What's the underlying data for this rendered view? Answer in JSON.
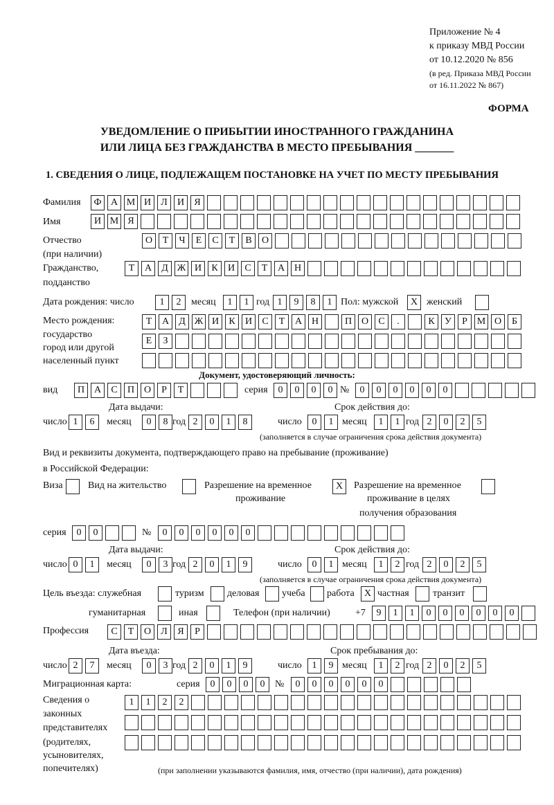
{
  "header": {
    "appendix": "Приложение № 4",
    "order_line1": "к приказу МВД России",
    "order_line2": "от 10.12.2020 № 856",
    "edition_line1": "(в ред. Приказа МВД России",
    "edition_line2": "от 16.11.2022 № 867)",
    "form_label": "ФОРМА",
    "title_line1": "УВЕДОМЛЕНИЕ О ПРИБЫТИИ ИНОСТРАННОГО ГРАЖДАНИНА",
    "title_line2": "ИЛИ ЛИЦА БЕЗ ГРАЖДАНСТВА В МЕСТО ПРЕБЫВАНИЯ _______"
  },
  "section1": {
    "heading": "1. СВЕДЕНИЯ О ЛИЦЕ, ПОДЛЕЖАЩЕМ ПОСТАНОВКЕ НА УЧЕТ ПО МЕСТУ ПРЕБЫВАНИЯ",
    "surname": {
      "label": "Фамилия",
      "boxes": [
        "Ф",
        "А",
        "М",
        "И",
        "Л",
        "И",
        "Я",
        "",
        "",
        "",
        "",
        "",
        "",
        "",
        "",
        "",
        "",
        "",
        "",
        "",
        "",
        "",
        "",
        "",
        "",
        ""
      ]
    },
    "name": {
      "label": "Имя",
      "boxes": [
        "И",
        "М",
        "Я",
        "",
        "",
        "",
        "",
        "",
        "",
        "",
        "",
        "",
        "",
        "",
        "",
        "",
        "",
        "",
        "",
        "",
        "",
        "",
        "",
        "",
        "",
        ""
      ]
    },
    "patronymic": {
      "label": "Отчество",
      "label2": "(при наличии)",
      "boxes": [
        "О",
        "Т",
        "Ч",
        "Е",
        "С",
        "Т",
        "В",
        "О",
        "",
        "",
        "",
        "",
        "",
        "",
        "",
        "",
        "",
        "",
        "",
        "",
        "",
        "",
        ""
      ]
    },
    "citizenship": {
      "label": "Гражданство,",
      "label2": "подданство",
      "boxes": [
        "Т",
        "А",
        "Д",
        "Ж",
        "И",
        "К",
        "И",
        "С",
        "Т",
        "А",
        "Н",
        "",
        "",
        "",
        "",
        "",
        "",
        "",
        "",
        "",
        "",
        "",
        "",
        ""
      ]
    },
    "birth_date": {
      "label": "Дата рождения:   число",
      "month_label": "месяц",
      "year_label": "год",
      "day": [
        "1",
        "2"
      ],
      "month": [
        "1",
        "1"
      ],
      "year": [
        "1",
        "9",
        "8",
        "1"
      ]
    },
    "sex": {
      "label": "Пол: мужской",
      "male": "X",
      "female_label": "женский",
      "female": ""
    },
    "birth_place": {
      "label1": "Место рождения:",
      "label2": "государство",
      "label3": "город или другой",
      "label4": "населенный пункт",
      "row1": [
        "Т",
        "А",
        "Д",
        "Ж",
        "И",
        "К",
        "И",
        "С",
        "Т",
        "А",
        "Н",
        "",
        "П",
        "О",
        "С",
        ".",
        "",
        "К",
        "У",
        "Р",
        "М",
        "О",
        "Б"
      ],
      "row2": [
        "Е",
        "З",
        "",
        "",
        "",
        "",
        "",
        "",
        "",
        "",
        "",
        "",
        "",
        "",
        "",
        "",
        "",
        "",
        "",
        "",
        "",
        "",
        ""
      ],
      "row3": [
        "",
        "",
        "",
        "",
        "",
        "",
        "",
        "",
        "",
        "",
        "",
        "",
        "",
        "",
        "",
        "",
        "",
        "",
        "",
        "",
        "",
        "",
        ""
      ]
    },
    "id_doc": {
      "heading": "Документ, удостоверяющий личность:",
      "kind_label": "вид",
      "kind": [
        "П",
        "А",
        "С",
        "П",
        "О",
        "Р",
        "Т",
        "",
        "",
        ""
      ],
      "series_label": "серия",
      "series": [
        "0",
        "0",
        "0",
        "0"
      ],
      "number_label": "№",
      "number": [
        "0",
        "0",
        "0",
        "0",
        "0",
        "0",
        "",
        "",
        "",
        "",
        ""
      ],
      "issue_label": "Дата выдачи:",
      "valid_label": "Срок действия до:",
      "day_label": "число",
      "month_label": "месяц",
      "year_label": "год",
      "issue_day": [
        "1",
        "6"
      ],
      "issue_month": [
        "0",
        "8"
      ],
      "issue_year": [
        "2",
        "0",
        "1",
        "8"
      ],
      "valid_day": [
        "0",
        "1"
      ],
      "valid_month": [
        "1",
        "1"
      ],
      "valid_year": [
        "2",
        "0",
        "2",
        "5"
      ],
      "note": "(заполняется в случае ограничения срока действия документа)"
    },
    "stay_doc": {
      "label1": "Вид и реквизиты документа, подтверждающего право на пребывание (проживание)",
      "label2": "в Российской Федерации:",
      "visa_label": "Виза",
      "visa": "",
      "residence_label": "Вид на жительство",
      "residence": "",
      "trp_label1": "Разрешение на временное",
      "trp_label2": "проживание",
      "trp": "X",
      "trp_edu_label1": "Разрешение на временное",
      "trp_edu_label2": "проживание в целях",
      "trp_edu_label3": "получения образования",
      "trp_edu": "",
      "series_label": "серия",
      "series": [
        "0",
        "0",
        "",
        ""
      ],
      "number_label": "№",
      "number": [
        "0",
        "0",
        "0",
        "0",
        "0",
        "0",
        "",
        "",
        "",
        "",
        "",
        "",
        "",
        "",
        ""
      ],
      "issue_label": "Дата выдачи:",
      "valid_label": "Срок действия до:",
      "day_label": "число",
      "month_label": "месяц",
      "year_label": "год",
      "issue_day": [
        "0",
        "1"
      ],
      "issue_month": [
        "0",
        "3"
      ],
      "issue_year": [
        "2",
        "0",
        "1",
        "9"
      ],
      "valid_day": [
        "0",
        "1"
      ],
      "valid_month": [
        "1",
        "2"
      ],
      "valid_year": [
        "2",
        "0",
        "2",
        "5"
      ],
      "note": "(заполняется в случае ограничения срока действия документа)"
    },
    "purpose": {
      "label": "Цель въезда: служебная",
      "official": "",
      "tourism_label": "туризм",
      "tourism": "",
      "business_label": "деловая",
      "business": "",
      "study_label": "учеба",
      "study": "",
      "work_label": "работа",
      "work": "X",
      "private_label": "частная",
      "private": "",
      "transit_label": "транзит",
      "transit": "",
      "humanitarian_label": "гуманитарная",
      "humanitarian": "",
      "other_label": "иная",
      "other": ""
    },
    "phone": {
      "label": "Телефон (при наличии)",
      "prefix": "+7",
      "boxes": [
        "9",
        "1",
        "1",
        "0",
        "0",
        "0",
        "0",
        "0",
        "0",
        ""
      ]
    },
    "profession": {
      "label": "Профессия",
      "boxes": [
        "С",
        "Т",
        "О",
        "Л",
        "Я",
        "Р",
        "",
        "",
        "",
        "",
        "",
        "",
        "",
        "",
        "",
        "",
        "",
        "",
        "",
        "",
        "",
        "",
        "",
        "",
        "",
        ""
      ]
    },
    "entry": {
      "entry_label": "Дата въезда:",
      "stay_label": "Срок пребывания до:",
      "day_label": "число",
      "month_label": "месяц",
      "year_label": "год",
      "entry_day": [
        "2",
        "7"
      ],
      "entry_month": [
        "0",
        "3"
      ],
      "entry_year": [
        "2",
        "0",
        "1",
        "9"
      ],
      "stay_day": [
        "1",
        "9"
      ],
      "stay_month": [
        "1",
        "2"
      ],
      "stay_year": [
        "2",
        "0",
        "2",
        "5"
      ]
    },
    "migration_card": {
      "label": "Миграционная карта:",
      "series_label": "серия",
      "series": [
        "0",
        "0",
        "0",
        "0"
      ],
      "number_label": "№",
      "number": [
        "0",
        "0",
        "0",
        "0",
        "0",
        "0",
        "",
        "",
        "",
        "",
        ""
      ]
    },
    "representatives": {
      "label1": "Сведения о",
      "label2": "законных",
      "label3": "представителях",
      "label4": "(родителях,",
      "label5": "усыновителях,",
      "label6": "попечителях)",
      "row1": [
        "1",
        "1",
        "2",
        "2",
        "",
        "",
        "",
        "",
        "",
        "",
        "",
        "",
        "",
        "",
        "",
        "",
        "",
        "",
        "",
        "",
        "",
        "",
        "",
        ""
      ],
      "row2": [
        "",
        "",
        "",
        "",
        "",
        "",
        "",
        "",
        "",
        "",
        "",
        "",
        "",
        "",
        "",
        "",
        "",
        "",
        "",
        "",
        "",
        "",
        "",
        ""
      ],
      "row3": [
        "",
        "",
        "",
        "",
        "",
        "",
        "",
        "",
        "",
        "",
        "",
        "",
        "",
        "",
        "",
        "",
        "",
        "",
        "",
        "",
        "",
        "",
        "",
        ""
      ],
      "note": "(при заполнении указываются фамилия, имя, отчество (при наличии), дата рождения)"
    }
  }
}
